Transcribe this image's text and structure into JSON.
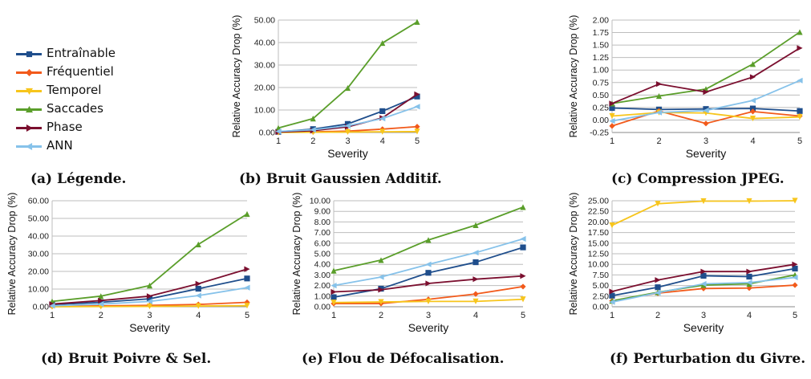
{
  "legend": {
    "items": [
      {
        "label": "Entraînable",
        "color": "#1f4e8c",
        "marker": "square"
      },
      {
        "label": "Fréquentiel",
        "color": "#f25a1b",
        "marker": "diamond"
      },
      {
        "label": "Temporel",
        "color": "#f7c51c",
        "marker": "triangle-down"
      },
      {
        "label": "Saccades",
        "color": "#5a9e2a",
        "marker": "triangle-up"
      },
      {
        "label": "Phase",
        "color": "#7b0f2f",
        "marker": "triangle-right"
      },
      {
        "label": "ANN",
        "color": "#86c2ea",
        "marker": "triangle-left"
      }
    ]
  },
  "captions": {
    "a": "(a) Légende.",
    "b": "(b) Bruit Gaussien Additif.",
    "c": "(c) Compression JPEG.",
    "d": "(d) Bruit Poivre & Sel.",
    "e": "(e) Flou de Défocalisation.",
    "f": "(f) Perturbation du Givre."
  },
  "chart_data": [
    {
      "id": "b",
      "type": "line",
      "xlabel": "Severity",
      "ylabel": "Relative Accuracy Drop (%)",
      "x": [
        1,
        2,
        3,
        4,
        5
      ],
      "ylim": [
        0,
        50
      ],
      "yticks": [
        0,
        10,
        20,
        30,
        40,
        50
      ],
      "yticklabels": [
        "0.00",
        "10.00",
        "20.00",
        "30.00",
        "40.00",
        "50.00"
      ],
      "grid": true,
      "series": [
        {
          "name": "Entraînable",
          "values": [
            0.3,
            1.5,
            3.8,
            9.5,
            16.0
          ]
        },
        {
          "name": "Fréquentiel",
          "values": [
            0.1,
            0.3,
            0.6,
            1.5,
            2.6
          ]
        },
        {
          "name": "Temporel",
          "values": [
            0.0,
            0.1,
            0.2,
            0.3,
            0.4
          ]
        },
        {
          "name": "Saccades",
          "values": [
            2.0,
            6.2,
            19.8,
            39.8,
            49.2
          ]
        },
        {
          "name": "Phase",
          "values": [
            0.2,
            0.8,
            2.5,
            6.5,
            17.0
          ]
        },
        {
          "name": "ANN",
          "values": [
            0.5,
            1.2,
            3.0,
            6.2,
            11.5
          ]
        }
      ]
    },
    {
      "id": "c",
      "type": "line",
      "xlabel": "Severity",
      "ylabel": "Relative Accuracy Drop (%)",
      "x": [
        1,
        2,
        3,
        4,
        5
      ],
      "ylim": [
        -0.25,
        2.0
      ],
      "yticks": [
        -0.25,
        0,
        0.25,
        0.5,
        0.75,
        1.0,
        1.25,
        1.5,
        1.75,
        2.0
      ],
      "yticklabels": [
        "-0.25",
        "0.00",
        "0.25",
        "0.50",
        "0.75",
        "1.00",
        "1.25",
        "1.50",
        "1.75",
        "2.00"
      ],
      "grid": true,
      "series": [
        {
          "name": "Entraînable",
          "values": [
            0.24,
            0.21,
            0.22,
            0.23,
            0.18
          ]
        },
        {
          "name": "Fréquentiel",
          "values": [
            -0.12,
            0.18,
            -0.07,
            0.17,
            0.08
          ]
        },
        {
          "name": "Temporel",
          "values": [
            0.08,
            0.15,
            0.14,
            0.03,
            0.06
          ]
        },
        {
          "name": "Saccades",
          "values": [
            0.33,
            0.48,
            0.62,
            1.12,
            1.76
          ]
        },
        {
          "name": "Phase",
          "values": [
            0.33,
            0.72,
            0.56,
            0.86,
            1.44
          ]
        },
        {
          "name": "ANN",
          "values": [
            -0.02,
            0.15,
            0.19,
            0.39,
            0.79
          ]
        }
      ]
    },
    {
      "id": "d",
      "type": "line",
      "xlabel": "Severity",
      "ylabel": "Relative Accuracy Drop (%)",
      "x": [
        1,
        2,
        3,
        4,
        5
      ],
      "ylim": [
        0,
        60
      ],
      "yticks": [
        0,
        10,
        20,
        30,
        40,
        50,
        60
      ],
      "yticklabels": [
        "0.00",
        "10.00",
        "20.00",
        "30.00",
        "40.00",
        "50.00",
        "60.00"
      ],
      "grid": true,
      "series": [
        {
          "name": "Entraînable",
          "values": [
            1.2,
            2.5,
            4.5,
            10.2,
            16.0
          ]
        },
        {
          "name": "Fréquentiel",
          "values": [
            0.2,
            0.5,
            0.8,
            1.3,
            2.5
          ]
        },
        {
          "name": "Temporel",
          "values": [
            0.0,
            0.1,
            0.2,
            0.4,
            0.6
          ]
        },
        {
          "name": "Saccades",
          "values": [
            3.0,
            6.0,
            12.0,
            35.3,
            52.5
          ]
        },
        {
          "name": "Phase",
          "values": [
            1.5,
            3.5,
            6.0,
            13.0,
            21.3
          ]
        },
        {
          "name": "ANN",
          "values": [
            0.5,
            1.5,
            3.0,
            6.3,
            10.8
          ]
        }
      ]
    },
    {
      "id": "e",
      "type": "line",
      "xlabel": "Severity",
      "ylabel": "Relative Accuracy Drop (%)",
      "x": [
        1,
        2,
        3,
        4,
        5
      ],
      "ylim": [
        0,
        10
      ],
      "yticks": [
        0,
        1,
        2,
        3,
        4,
        5,
        6,
        7,
        8,
        9,
        10
      ],
      "yticklabels": [
        "0.00",
        "1.00",
        "2.00",
        "3.00",
        "4.00",
        "5.00",
        "6.00",
        "7.00",
        "8.00",
        "9.00",
        "10.00"
      ],
      "grid": true,
      "series": [
        {
          "name": "Entraînable",
          "values": [
            0.9,
            1.7,
            3.2,
            4.2,
            5.6
          ]
        },
        {
          "name": "Fréquentiel",
          "values": [
            0.3,
            0.3,
            0.7,
            1.2,
            1.9
          ]
        },
        {
          "name": "Temporel",
          "values": [
            0.4,
            0.45,
            0.5,
            0.5,
            0.7
          ]
        },
        {
          "name": "Saccades",
          "values": [
            3.4,
            4.4,
            6.3,
            7.7,
            9.4
          ]
        },
        {
          "name": "Phase",
          "values": [
            1.4,
            1.6,
            2.2,
            2.6,
            2.9
          ]
        },
        {
          "name": "ANN",
          "values": [
            2.0,
            2.8,
            4.0,
            5.1,
            6.4
          ]
        }
      ]
    },
    {
      "id": "f",
      "type": "line",
      "xlabel": "Severity",
      "ylabel": "Relative Accuracy Drop (%)",
      "x": [
        1,
        2,
        3,
        4,
        5
      ],
      "ylim": [
        0,
        25
      ],
      "yticks": [
        0,
        2.5,
        5,
        7.5,
        10,
        12.5,
        15,
        17.5,
        20,
        22.5,
        25
      ],
      "yticklabels": [
        "0.00",
        "2.50",
        "5.00",
        "7.50",
        "10.00",
        "12.50",
        "15.00",
        "17.50",
        "20.00",
        "22.50",
        "25.00"
      ],
      "grid": true,
      "series": [
        {
          "name": "Entraînable",
          "values": [
            2.6,
            4.6,
            7.3,
            7.1,
            9.0
          ]
        },
        {
          "name": "Fréquentiel",
          "values": [
            1.4,
            3.2,
            4.3,
            4.4,
            5.1
          ]
        },
        {
          "name": "Temporel",
          "values": [
            19.2,
            24.3,
            24.9,
            24.9,
            25.0
          ]
        },
        {
          "name": "Saccades",
          "values": [
            1.4,
            3.4,
            5.1,
            5.4,
            7.5
          ]
        },
        {
          "name": "Phase",
          "values": [
            3.6,
            6.3,
            8.3,
            8.3,
            10.0
          ]
        },
        {
          "name": "ANN",
          "values": [
            1.1,
            3.3,
            5.4,
            5.7,
            6.9
          ]
        }
      ]
    }
  ]
}
